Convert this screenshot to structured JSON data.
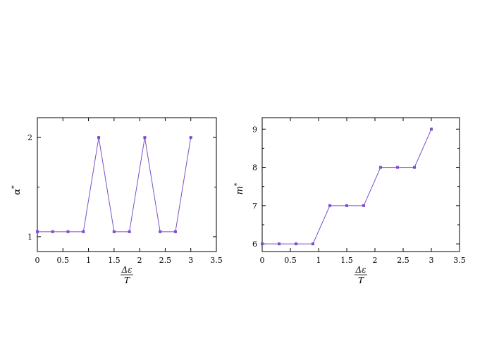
{
  "chart_data": [
    {
      "type": "line",
      "title": "",
      "xlabel": "Δε / T",
      "xlabel_num": "Δε",
      "xlabel_den": "T",
      "ylabel": "α*",
      "ylabel_main": "α",
      "ylabel_sup": "*",
      "xlim": [
        0,
        3.5
      ],
      "ylim": [
        0.85,
        2.2
      ],
      "xticks": [
        0,
        0.5,
        1,
        1.5,
        2,
        2.5,
        3,
        3.5
      ],
      "xtick_labels": [
        "0",
        "0.5",
        "1",
        "1.5",
        "2",
        "2.5",
        "3",
        "3.5"
      ],
      "yticks": [
        1,
        2
      ],
      "ytick_labels": [
        "1",
        "2"
      ],
      "grid": false,
      "color": "#7b4fc7",
      "series": [
        {
          "x": [
            0,
            0.3,
            0.6,
            0.9,
            1.2,
            1.5,
            1.8,
            2.1,
            2.4,
            2.7,
            3.0
          ],
          "y": [
            1.05,
            1.05,
            1.05,
            1.05,
            2.0,
            1.05,
            1.05,
            2.0,
            1.05,
            1.05,
            2.0
          ]
        }
      ]
    },
    {
      "type": "line",
      "title": "",
      "xlabel": "Δε / T",
      "xlabel_num": "Δε",
      "xlabel_den": "T",
      "ylabel": "m*",
      "ylabel_main": "m",
      "ylabel_sup": "*",
      "xlim": [
        0,
        3.5
      ],
      "ylim": [
        5.8,
        9.3
      ],
      "xticks": [
        0,
        0.5,
        1,
        1.5,
        2,
        2.5,
        3,
        3.5
      ],
      "xtick_labels": [
        "0",
        "0.5",
        "1",
        "1.5",
        "2",
        "2.5",
        "3",
        "3.5"
      ],
      "yticks": [
        6,
        7,
        8,
        9
      ],
      "ytick_labels": [
        "6",
        "7",
        "8",
        "9"
      ],
      "grid": false,
      "color": "#7b4fc7",
      "series": [
        {
          "x": [
            0,
            0.3,
            0.6,
            0.9,
            1.2,
            1.5,
            1.8,
            2.1,
            2.4,
            2.7,
            3.0
          ],
          "y": [
            6.0,
            6.0,
            6.0,
            6.0,
            7.0,
            7.0,
            7.0,
            8.0,
            8.0,
            8.0,
            9.0
          ]
        }
      ]
    }
  ]
}
